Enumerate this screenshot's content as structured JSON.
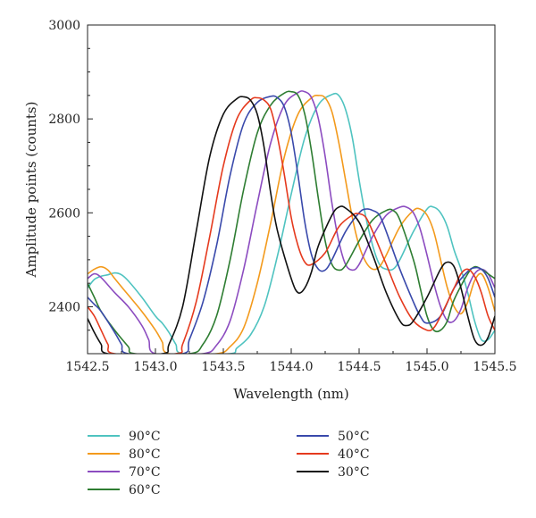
{
  "chart_data": {
    "type": "line",
    "title": "",
    "xlabel": "Wavelength (nm)",
    "ylabel": "Amplitude points (counts)",
    "xlim": [
      1542.5,
      1545.5
    ],
    "ylim": [
      2300,
      3000
    ],
    "xticks": [
      "1542.5",
      "1543.0",
      "1543.5",
      "1544.0",
      "1544.5",
      "1545.0",
      "1545.5"
    ],
    "yticks": [
      "2400",
      "2600",
      "2800",
      "3000"
    ],
    "grid": false,
    "legend_position": "bottom",
    "series": [
      {
        "name": "90°C",
        "color": "#4fc3c0",
        "points": [
          [
            1542.5,
            2440
          ],
          [
            1542.55,
            2458
          ],
          [
            1542.6,
            2465
          ],
          [
            1542.65,
            2468
          ],
          [
            1542.7,
            2472
          ],
          [
            1542.75,
            2468
          ],
          [
            1542.8,
            2455
          ],
          [
            1542.9,
            2420
          ],
          [
            1543.0,
            2380
          ],
          [
            1543.05,
            2365
          ],
          [
            1543.1,
            2345
          ],
          [
            1543.15,
            2320
          ],
          [
            1543.2,
            2300
          ],
          [
            1543.55,
            2300
          ],
          [
            1543.6,
            2312
          ],
          [
            1543.7,
            2340
          ],
          [
            1543.8,
            2400
          ],
          [
            1543.9,
            2510
          ],
          [
            1544.0,
            2640
          ],
          [
            1544.1,
            2760
          ],
          [
            1544.2,
            2830
          ],
          [
            1544.3,
            2852
          ],
          [
            1544.35,
            2850
          ],
          [
            1544.4,
            2820
          ],
          [
            1544.45,
            2760
          ],
          [
            1544.5,
            2670
          ],
          [
            1544.55,
            2590
          ],
          [
            1544.6,
            2530
          ],
          [
            1544.65,
            2490
          ],
          [
            1544.7,
            2480
          ],
          [
            1544.75,
            2480
          ],
          [
            1544.8,
            2500
          ],
          [
            1544.9,
            2560
          ],
          [
            1545.0,
            2608
          ],
          [
            1545.05,
            2612
          ],
          [
            1545.1,
            2600
          ],
          [
            1545.15,
            2570
          ],
          [
            1545.2,
            2520
          ],
          [
            1545.25,
            2480
          ],
          [
            1545.3,
            2430
          ],
          [
            1545.35,
            2370
          ],
          [
            1545.4,
            2330
          ],
          [
            1545.45,
            2330
          ],
          [
            1545.5,
            2350
          ]
        ]
      },
      {
        "name": "80°C",
        "color": "#f39a1c",
        "points": [
          [
            1542.5,
            2470
          ],
          [
            1542.55,
            2480
          ],
          [
            1542.6,
            2485
          ],
          [
            1542.65,
            2478
          ],
          [
            1542.7,
            2460
          ],
          [
            1542.8,
            2425
          ],
          [
            1542.9,
            2390
          ],
          [
            1543.0,
            2350
          ],
          [
            1543.05,
            2325
          ],
          [
            1543.1,
            2300
          ],
          [
            1543.45,
            2300
          ],
          [
            1543.55,
            2315
          ],
          [
            1543.65,
            2355
          ],
          [
            1543.75,
            2450
          ],
          [
            1543.85,
            2580
          ],
          [
            1543.95,
            2720
          ],
          [
            1544.05,
            2810
          ],
          [
            1544.15,
            2845
          ],
          [
            1544.2,
            2850
          ],
          [
            1544.25,
            2845
          ],
          [
            1544.3,
            2815
          ],
          [
            1544.35,
            2750
          ],
          [
            1544.4,
            2670
          ],
          [
            1544.45,
            2590
          ],
          [
            1544.5,
            2530
          ],
          [
            1544.55,
            2495
          ],
          [
            1544.6,
            2480
          ],
          [
            1544.65,
            2485
          ],
          [
            1544.7,
            2510
          ],
          [
            1544.8,
            2570
          ],
          [
            1544.9,
            2605
          ],
          [
            1544.95,
            2608
          ],
          [
            1545.0,
            2595
          ],
          [
            1545.05,
            2560
          ],
          [
            1545.1,
            2500
          ],
          [
            1545.15,
            2440
          ],
          [
            1545.2,
            2400
          ],
          [
            1545.25,
            2385
          ],
          [
            1545.3,
            2410
          ],
          [
            1545.35,
            2455
          ],
          [
            1545.4,
            2470
          ],
          [
            1545.45,
            2440
          ],
          [
            1545.5,
            2390
          ]
        ]
      },
      {
        "name": "70°C",
        "color": "#8c4cc0",
        "points": [
          [
            1542.5,
            2460
          ],
          [
            1542.55,
            2470
          ],
          [
            1542.6,
            2462
          ],
          [
            1542.7,
            2430
          ],
          [
            1542.8,
            2400
          ],
          [
            1542.9,
            2360
          ],
          [
            1542.95,
            2330
          ],
          [
            1543.0,
            2300
          ],
          [
            1543.35,
            2300
          ],
          [
            1543.45,
            2318
          ],
          [
            1543.55,
            2370
          ],
          [
            1543.65,
            2480
          ],
          [
            1543.75,
            2620
          ],
          [
            1543.85,
            2750
          ],
          [
            1543.95,
            2830
          ],
          [
            1544.05,
            2856
          ],
          [
            1544.1,
            2858
          ],
          [
            1544.15,
            2845
          ],
          [
            1544.2,
            2800
          ],
          [
            1544.25,
            2720
          ],
          [
            1544.3,
            2620
          ],
          [
            1544.35,
            2540
          ],
          [
            1544.4,
            2490
          ],
          [
            1544.45,
            2478
          ],
          [
            1544.5,
            2490
          ],
          [
            1544.6,
            2550
          ],
          [
            1544.7,
            2595
          ],
          [
            1544.8,
            2612
          ],
          [
            1544.85,
            2612
          ],
          [
            1544.9,
            2600
          ],
          [
            1544.95,
            2565
          ],
          [
            1545.0,
            2510
          ],
          [
            1545.05,
            2450
          ],
          [
            1545.1,
            2400
          ],
          [
            1545.15,
            2370
          ],
          [
            1545.2,
            2370
          ],
          [
            1545.25,
            2395
          ],
          [
            1545.3,
            2440
          ],
          [
            1545.35,
            2470
          ],
          [
            1545.4,
            2480
          ],
          [
            1545.45,
            2470
          ],
          [
            1545.5,
            2440
          ]
        ]
      },
      {
        "name": "60°C",
        "color": "#2e7d32",
        "points": [
          [
            1542.5,
            2450
          ],
          [
            1542.55,
            2420
          ],
          [
            1542.6,
            2390
          ],
          [
            1542.7,
            2350
          ],
          [
            1542.8,
            2315
          ],
          [
            1542.85,
            2300
          ],
          [
            1543.25,
            2300
          ],
          [
            1543.35,
            2320
          ],
          [
            1543.45,
            2380
          ],
          [
            1543.55,
            2500
          ],
          [
            1543.65,
            2650
          ],
          [
            1543.75,
            2770
          ],
          [
            1543.85,
            2830
          ],
          [
            1543.95,
            2855
          ],
          [
            1544.0,
            2858
          ],
          [
            1544.05,
            2850
          ],
          [
            1544.1,
            2810
          ],
          [
            1544.15,
            2730
          ],
          [
            1544.2,
            2630
          ],
          [
            1544.25,
            2540
          ],
          [
            1544.3,
            2490
          ],
          [
            1544.35,
            2478
          ],
          [
            1544.4,
            2488
          ],
          [
            1544.5,
            2540
          ],
          [
            1544.6,
            2585
          ],
          [
            1544.7,
            2605
          ],
          [
            1544.75,
            2605
          ],
          [
            1544.8,
            2585
          ],
          [
            1544.9,
            2500
          ],
          [
            1544.95,
            2440
          ],
          [
            1545.0,
            2380
          ],
          [
            1545.05,
            2350
          ],
          [
            1545.1,
            2350
          ],
          [
            1545.15,
            2370
          ],
          [
            1545.2,
            2415
          ],
          [
            1545.3,
            2470
          ],
          [
            1545.35,
            2485
          ],
          [
            1545.4,
            2480
          ],
          [
            1545.45,
            2470
          ],
          [
            1545.5,
            2460
          ]
        ]
      },
      {
        "name": "50°C",
        "color": "#3949ab",
        "points": [
          [
            1542.5,
            2420
          ],
          [
            1542.55,
            2405
          ],
          [
            1542.6,
            2390
          ],
          [
            1542.7,
            2345
          ],
          [
            1542.75,
            2320
          ],
          [
            1542.8,
            2300
          ],
          [
            1543.2,
            2300
          ],
          [
            1543.25,
            2330
          ],
          [
            1543.35,
            2410
          ],
          [
            1543.45,
            2530
          ],
          [
            1543.55,
            2680
          ],
          [
            1543.65,
            2790
          ],
          [
            1543.75,
            2835
          ],
          [
            1543.85,
            2848
          ],
          [
            1543.9,
            2845
          ],
          [
            1543.95,
            2825
          ],
          [
            1544.0,
            2770
          ],
          [
            1544.05,
            2680
          ],
          [
            1544.1,
            2580
          ],
          [
            1544.15,
            2510
          ],
          [
            1544.2,
            2480
          ],
          [
            1544.25,
            2478
          ],
          [
            1544.3,
            2500
          ],
          [
            1544.4,
            2560
          ],
          [
            1544.5,
            2600
          ],
          [
            1544.55,
            2608
          ],
          [
            1544.6,
            2605
          ],
          [
            1544.65,
            2595
          ],
          [
            1544.7,
            2560
          ],
          [
            1544.8,
            2480
          ],
          [
            1544.9,
            2410
          ],
          [
            1544.95,
            2380
          ],
          [
            1545.0,
            2365
          ],
          [
            1545.1,
            2380
          ],
          [
            1545.2,
            2440
          ],
          [
            1545.3,
            2475
          ],
          [
            1545.35,
            2483
          ],
          [
            1545.4,
            2480
          ],
          [
            1545.45,
            2460
          ],
          [
            1545.5,
            2420
          ]
        ]
      },
      {
        "name": "40°C",
        "color": "#e53a1e",
        "points": [
          [
            1542.5,
            2400
          ],
          [
            1542.55,
            2380
          ],
          [
            1542.6,
            2350
          ],
          [
            1542.65,
            2320
          ],
          [
            1542.7,
            2300
          ],
          [
            1543.15,
            2300
          ],
          [
            1543.2,
            2320
          ],
          [
            1543.3,
            2410
          ],
          [
            1543.4,
            2550
          ],
          [
            1543.5,
            2700
          ],
          [
            1543.6,
            2800
          ],
          [
            1543.7,
            2840
          ],
          [
            1543.75,
            2845
          ],
          [
            1543.8,
            2840
          ],
          [
            1543.85,
            2820
          ],
          [
            1543.9,
            2760
          ],
          [
            1543.95,
            2680
          ],
          [
            1544.0,
            2590
          ],
          [
            1544.05,
            2530
          ],
          [
            1544.1,
            2495
          ],
          [
            1544.15,
            2490
          ],
          [
            1544.25,
            2515
          ],
          [
            1544.35,
            2570
          ],
          [
            1544.45,
            2595
          ],
          [
            1544.5,
            2598
          ],
          [
            1544.55,
            2590
          ],
          [
            1544.6,
            2560
          ],
          [
            1544.7,
            2490
          ],
          [
            1544.8,
            2420
          ],
          [
            1544.9,
            2370
          ],
          [
            1545.0,
            2350
          ],
          [
            1545.05,
            2355
          ],
          [
            1545.1,
            2380
          ],
          [
            1545.2,
            2440
          ],
          [
            1545.25,
            2470
          ],
          [
            1545.3,
            2480
          ],
          [
            1545.35,
            2465
          ],
          [
            1545.4,
            2430
          ],
          [
            1545.45,
            2380
          ],
          [
            1545.5,
            2350
          ]
        ]
      },
      {
        "name": "30°C",
        "color": "#111111",
        "points": [
          [
            1542.5,
            2375
          ],
          [
            1542.55,
            2345
          ],
          [
            1542.6,
            2320
          ],
          [
            1542.65,
            2300
          ],
          [
            1543.05,
            2300
          ],
          [
            1543.1,
            2320
          ],
          [
            1543.2,
            2400
          ],
          [
            1543.3,
            2560
          ],
          [
            1543.4,
            2720
          ],
          [
            1543.5,
            2810
          ],
          [
            1543.6,
            2843
          ],
          [
            1543.65,
            2847
          ],
          [
            1543.7,
            2840
          ],
          [
            1543.75,
            2810
          ],
          [
            1543.8,
            2740
          ],
          [
            1543.85,
            2640
          ],
          [
            1543.9,
            2560
          ],
          [
            1544.0,
            2460
          ],
          [
            1544.05,
            2430
          ],
          [
            1544.1,
            2440
          ],
          [
            1544.15,
            2475
          ],
          [
            1544.2,
            2530
          ],
          [
            1544.3,
            2595
          ],
          [
            1544.35,
            2612
          ],
          [
            1544.4,
            2610
          ],
          [
            1544.5,
            2580
          ],
          [
            1544.6,
            2510
          ],
          [
            1544.7,
            2430
          ],
          [
            1544.8,
            2370
          ],
          [
            1544.85,
            2360
          ],
          [
            1544.9,
            2370
          ],
          [
            1545.0,
            2420
          ],
          [
            1545.1,
            2480
          ],
          [
            1545.15,
            2495
          ],
          [
            1545.2,
            2485
          ],
          [
            1545.25,
            2440
          ],
          [
            1545.3,
            2380
          ],
          [
            1545.35,
            2330
          ],
          [
            1545.4,
            2318
          ],
          [
            1545.45,
            2335
          ],
          [
            1545.5,
            2380
          ]
        ]
      }
    ]
  },
  "legend": {
    "columns": [
      [
        "90°C",
        "80°C",
        "70°C",
        "60°C"
      ],
      [
        "50°C",
        "40°C",
        "30°C"
      ]
    ]
  }
}
